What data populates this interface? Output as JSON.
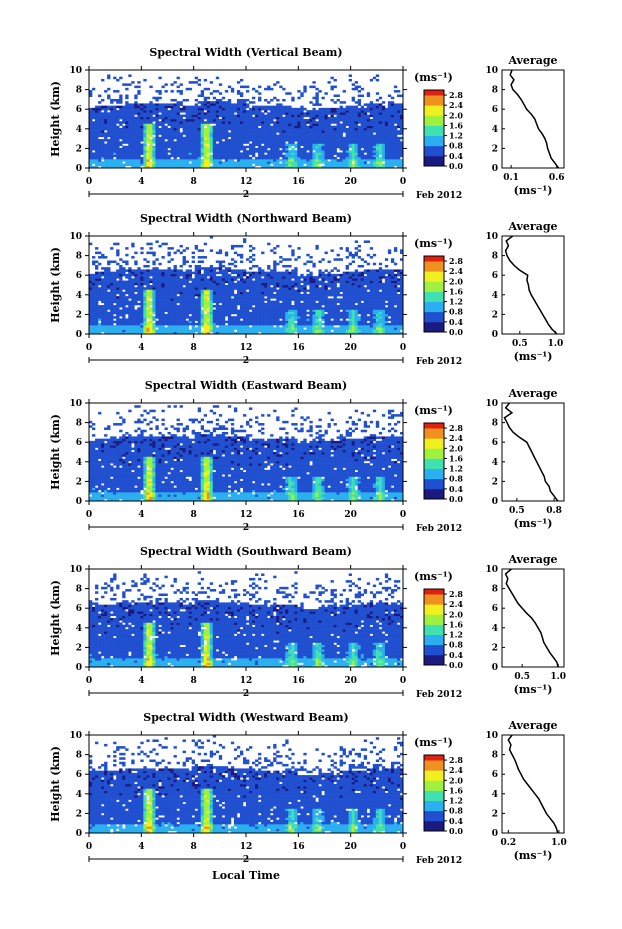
{
  "figure": {
    "x_axis_label": "Local Time",
    "date_label": "Feb 2012",
    "day_marker": "2",
    "y_axis_label": "Height (km)",
    "colorbar_unit": "(ms⁻¹)",
    "profile_title": "Average",
    "profile_xunit": "(ms⁻¹)",
    "colors": {
      "colormap": [
        "#1a1a80",
        "#2050d0",
        "#2ab0f0",
        "#40e0b0",
        "#a0f040",
        "#f0f020",
        "#f09020",
        "#e02010"
      ]
    }
  },
  "chart_data": [
    {
      "type": "heatmap",
      "title": "Spectral Width (Vertical Beam)",
      "ylabel": "Height (km)",
      "xlim": [
        0,
        24
      ],
      "ylim": [
        0,
        10
      ],
      "x_ticks": [
        "0",
        "4",
        "8",
        "12",
        "16",
        "20",
        "0"
      ],
      "y_ticks": [
        "0",
        "2",
        "4",
        "6",
        "8",
        "10"
      ],
      "colorbar_ticks": [
        "0.0",
        "0.4",
        "0.8",
        "1.2",
        "1.6",
        "2.0",
        "2.4",
        "2.8"
      ],
      "colorbar_range": [
        0,
        3.0
      ],
      "profile": {
        "title": "Average",
        "x_ticks": [
          "0.1",
          "0.6"
        ],
        "x_tick_values": [
          0.1,
          0.6
        ],
        "xlim": [
          0.0,
          0.68
        ],
        "heights": [
          0,
          0.5,
          1,
          1.5,
          2,
          2.5,
          3,
          3.5,
          4,
          4.5,
          5,
          5.5,
          6,
          6.5,
          7,
          7.5,
          8,
          8.5,
          9,
          9.5,
          10
        ],
        "values": [
          0.62,
          0.58,
          0.54,
          0.52,
          0.5,
          0.49,
          0.47,
          0.44,
          0.4,
          0.38,
          0.36,
          0.32,
          0.27,
          0.24,
          0.21,
          0.17,
          0.12,
          0.1,
          0.13,
          0.09,
          0.11
        ]
      }
    },
    {
      "type": "heatmap",
      "title": "Spectral Width (Northward Beam)",
      "ylabel": "Height (km)",
      "xlim": [
        0,
        24
      ],
      "ylim": [
        0,
        10
      ],
      "x_ticks": [
        "0",
        "4",
        "8",
        "12",
        "16",
        "20",
        "0"
      ],
      "y_ticks": [
        "0",
        "2",
        "4",
        "6",
        "8",
        "10"
      ],
      "colorbar_ticks": [
        "0.0",
        "0.4",
        "0.8",
        "1.2",
        "1.6",
        "2.0",
        "2.4",
        "2.8"
      ],
      "colorbar_range": [
        0,
        3.0
      ],
      "profile": {
        "title": "Average",
        "x_ticks": [
          "0.5",
          "1.0"
        ],
        "x_tick_values": [
          0.5,
          1.0
        ],
        "xlim": [
          0.25,
          1.12
        ],
        "heights": [
          0,
          0.5,
          1,
          1.5,
          2,
          2.5,
          3,
          3.5,
          4,
          4.5,
          5,
          5.5,
          6,
          6.5,
          7,
          7.5,
          8,
          8.5,
          9,
          9.5,
          10
        ],
        "values": [
          1.02,
          0.95,
          0.9,
          0.86,
          0.82,
          0.78,
          0.74,
          0.7,
          0.66,
          0.63,
          0.62,
          0.6,
          0.61,
          0.5,
          0.42,
          0.36,
          0.32,
          0.3,
          0.34,
          0.31,
          0.4
        ]
      }
    },
    {
      "type": "heatmap",
      "title": "Spectral Width (Eastward Beam)",
      "ylabel": "Height (km)",
      "xlim": [
        0,
        24
      ],
      "ylim": [
        0,
        10
      ],
      "x_ticks": [
        "0",
        "4",
        "8",
        "12",
        "16",
        "20",
        "0"
      ],
      "y_ticks": [
        "0",
        "2",
        "4",
        "6",
        "8",
        "10"
      ],
      "colorbar_ticks": [
        "0.0",
        "0.4",
        "0.8",
        "1.2",
        "1.6",
        "2.0",
        "2.4",
        "2.8"
      ],
      "colorbar_range": [
        0,
        3.0
      ],
      "profile": {
        "title": "Average",
        "x_ticks": [
          "0.5",
          "0.8"
        ],
        "x_tick_values": [
          0.5,
          0.8
        ],
        "xlim": [
          0.38,
          0.88
        ],
        "heights": [
          0,
          0.5,
          1,
          1.5,
          2,
          2.5,
          3,
          3.5,
          4,
          4.5,
          5,
          5.5,
          6,
          6.5,
          7,
          7.5,
          8,
          8.5,
          9,
          9.5,
          10
        ],
        "values": [
          0.83,
          0.8,
          0.77,
          0.76,
          0.73,
          0.72,
          0.7,
          0.68,
          0.66,
          0.64,
          0.62,
          0.6,
          0.58,
          0.52,
          0.47,
          0.44,
          0.42,
          0.4,
          0.46,
          0.41,
          0.44
        ]
      }
    },
    {
      "type": "heatmap",
      "title": "Spectral Width (Southward Beam)",
      "ylabel": "Height (km)",
      "xlim": [
        0,
        24
      ],
      "ylim": [
        0,
        10
      ],
      "x_ticks": [
        "0",
        "4",
        "8",
        "12",
        "16",
        "20",
        "0"
      ],
      "y_ticks": [
        "0",
        "2",
        "4",
        "6",
        "8",
        "10"
      ],
      "colorbar_ticks": [
        "0.0",
        "0.4",
        "0.8",
        "1.2",
        "1.6",
        "2.0",
        "2.4",
        "2.8"
      ],
      "colorbar_range": [
        0,
        3.0
      ],
      "profile": {
        "title": "Average",
        "x_ticks": [
          "0.5",
          "1.0"
        ],
        "x_tick_values": [
          0.5,
          1.0
        ],
        "xlim": [
          0.22,
          1.08
        ],
        "heights": [
          0,
          0.5,
          1,
          1.5,
          2,
          2.5,
          3,
          3.5,
          4,
          4.5,
          5,
          5.5,
          6,
          6.5,
          7,
          7.5,
          8,
          8.5,
          9,
          9.5,
          10
        ],
        "values": [
          1.0,
          0.98,
          0.93,
          0.88,
          0.84,
          0.8,
          0.78,
          0.76,
          0.72,
          0.68,
          0.63,
          0.56,
          0.5,
          0.44,
          0.4,
          0.36,
          0.32,
          0.28,
          0.3,
          0.27,
          0.35
        ]
      }
    },
    {
      "type": "heatmap",
      "title": "Spectral Width (Westward Beam)",
      "ylabel": "Height (km)",
      "xlim": [
        0,
        24
      ],
      "ylim": [
        0,
        10
      ],
      "x_ticks": [
        "0",
        "4",
        "8",
        "12",
        "16",
        "20",
        "0"
      ],
      "y_ticks": [
        "0",
        "2",
        "4",
        "6",
        "8",
        "10"
      ],
      "colorbar_ticks": [
        "0.0",
        "0.4",
        "0.8",
        "1.2",
        "1.6",
        "2.0",
        "2.4",
        "2.8"
      ],
      "colorbar_range": [
        0,
        3.0
      ],
      "profile": {
        "title": "Average",
        "x_ticks": [
          "0.2",
          "1.0"
        ],
        "x_tick_values": [
          0.2,
          1.0
        ],
        "xlim": [
          0.1,
          1.08
        ],
        "heights": [
          0,
          0.5,
          1,
          1.5,
          2,
          2.5,
          3,
          3.5,
          4,
          4.5,
          5,
          5.5,
          6,
          6.5,
          7,
          7.5,
          8,
          8.5,
          9,
          9.5,
          10
        ],
        "values": [
          0.98,
          0.96,
          0.92,
          0.86,
          0.8,
          0.76,
          0.72,
          0.68,
          0.62,
          0.56,
          0.5,
          0.44,
          0.4,
          0.36,
          0.33,
          0.3,
          0.26,
          0.22,
          0.24,
          0.2,
          0.26
        ]
      }
    }
  ]
}
